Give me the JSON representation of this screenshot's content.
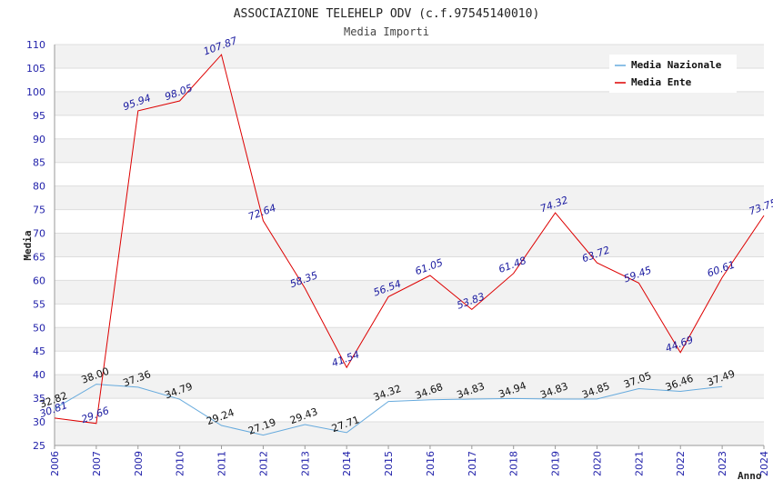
{
  "chart_data": {
    "type": "line",
    "title": "ASSOCIAZIONE TELEHELP ODV (c.f.97545140010)",
    "subtitle": "Media Importi",
    "xlabel": "Anno",
    "ylabel": "Media",
    "ylim": [
      25,
      110
    ],
    "y_ticks": [
      25,
      30,
      35,
      40,
      45,
      50,
      55,
      60,
      65,
      70,
      75,
      80,
      85,
      90,
      95,
      100,
      105,
      110
    ],
    "categories": [
      "2006",
      "2007",
      "2009",
      "2010",
      "2011",
      "2012",
      "2013",
      "2014",
      "2015",
      "2016",
      "2017",
      "2018",
      "2019",
      "2020",
      "2021",
      "2022",
      "2023",
      "2024"
    ],
    "grid": true,
    "legend_position": "top-right",
    "series": [
      {
        "name": "Media Nazionale",
        "color": "#66aadd",
        "values": [
          32.82,
          38.0,
          37.36,
          34.79,
          29.24,
          27.19,
          29.43,
          27.71,
          34.32,
          34.68,
          34.83,
          34.94,
          34.83,
          34.85,
          37.05,
          36.46,
          37.49,
          null
        ],
        "labels": [
          "32.82",
          "38.00",
          "37.36",
          "34.79",
          "29.24",
          "27.19",
          "29.43",
          "27.71",
          "34.32",
          "34.68",
          "34.83",
          "34.94",
          "34.83",
          "34.85",
          "37.05",
          "36.46",
          "37.49",
          ""
        ]
      },
      {
        "name": "Media Ente",
        "color": "#dd0000",
        "values": [
          30.81,
          29.66,
          95.94,
          98.05,
          107.87,
          72.64,
          58.35,
          41.54,
          56.54,
          61.05,
          53.83,
          61.48,
          74.32,
          63.72,
          59.45,
          44.69,
          60.61,
          73.75
        ],
        "labels": [
          "30.81",
          "29.66",
          "95.94",
          "98.05",
          "107.87",
          "72.64",
          "58.35",
          "41.54",
          "56.54",
          "61.05",
          "53.83",
          "61.48",
          "74.32",
          "63.72",
          "59.45",
          "44.69",
          "60.61",
          "73.75"
        ]
      }
    ]
  }
}
